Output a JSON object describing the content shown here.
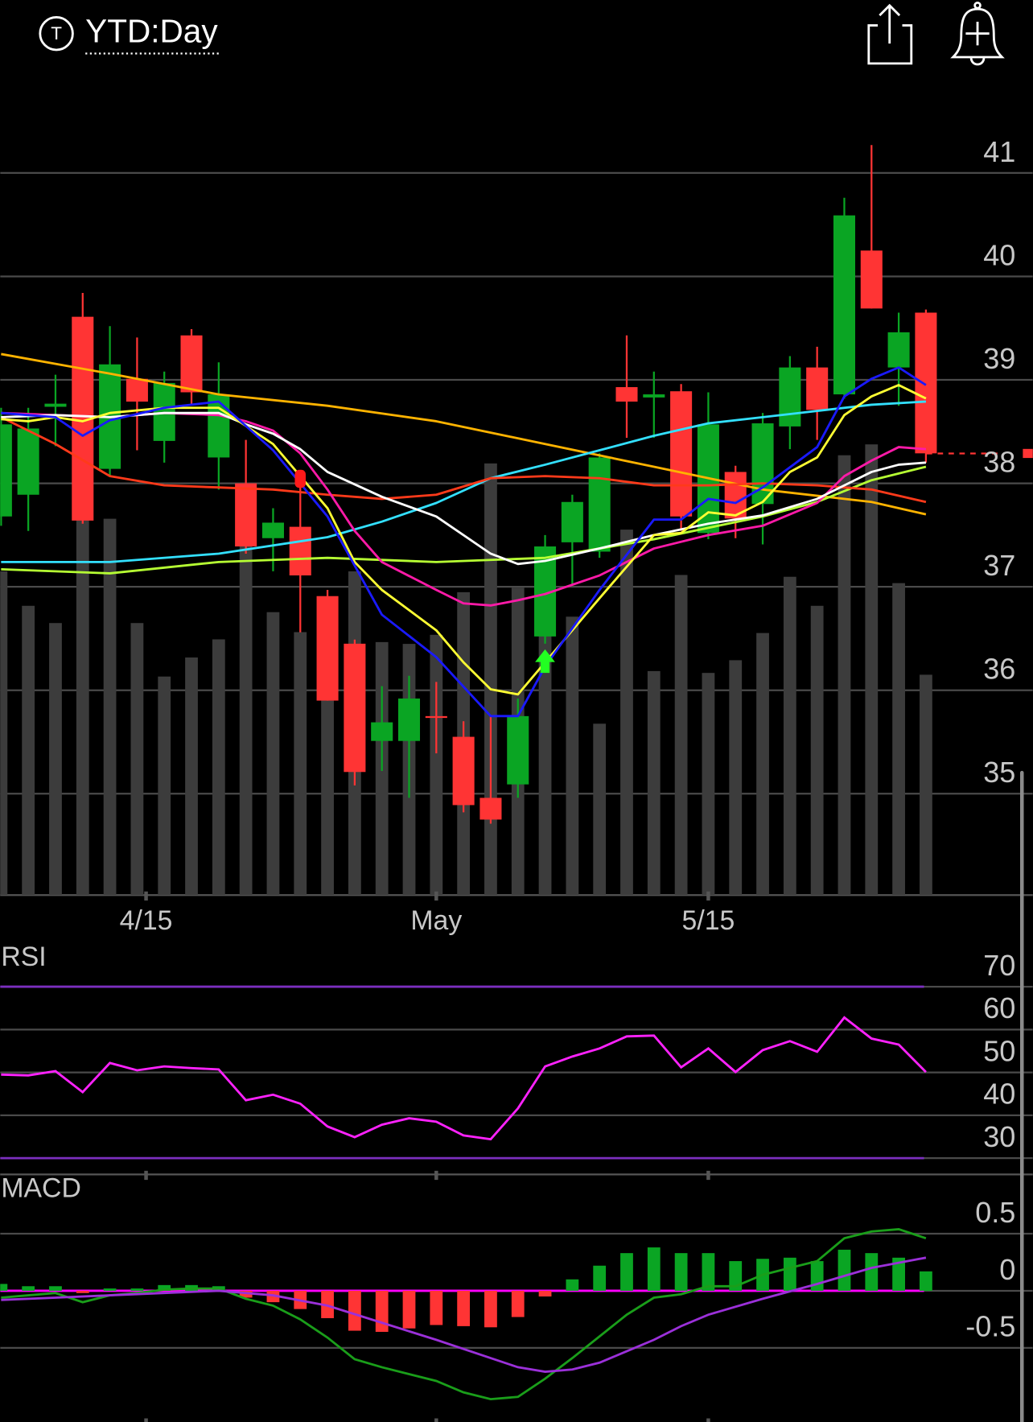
{
  "header": {
    "icon_letter": "T",
    "title": "YTD:Day"
  },
  "chart_data": [
    {
      "type": "candlestick",
      "x": [
        0,
        1,
        2,
        3,
        4,
        5,
        6,
        7,
        8,
        9,
        10,
        11,
        12,
        13,
        14,
        15,
        16,
        17,
        18,
        19,
        20,
        21,
        22,
        23,
        24,
        25,
        26,
        27,
        28,
        29,
        30,
        31,
        32,
        33,
        34
      ],
      "open": [
        37.68,
        37.89,
        38.74,
        39.61,
        38.14,
        39.01,
        38.41,
        39.43,
        38.25,
        38.0,
        37.47,
        37.58,
        36.91,
        36.45,
        35.51,
        35.51,
        35.75,
        35.55,
        34.96,
        35.09,
        36.52,
        37.43,
        37.34,
        38.93,
        38.83,
        38.89,
        37.52,
        38.11,
        37.8,
        38.55,
        39.12,
        38.86,
        40.25,
        39.12,
        39.65
      ],
      "high": [
        38.73,
        38.73,
        39.05,
        39.84,
        39.52,
        39.41,
        39.08,
        39.49,
        39.17,
        38.42,
        37.76,
        38.11,
        36.97,
        36.49,
        36.04,
        36.14,
        36.08,
        35.7,
        35.75,
        35.92,
        37.5,
        37.89,
        38.29,
        39.43,
        39.08,
        38.96,
        38.88,
        38.17,
        38.68,
        39.23,
        39.32,
        40.76,
        41.27,
        39.65,
        39.68
      ],
      "low": [
        37.59,
        37.54,
        38.36,
        37.61,
        38.07,
        38.32,
        38.2,
        38.77,
        37.94,
        37.32,
        37.15,
        36.56,
        35.9,
        35.08,
        35.22,
        34.96,
        35.39,
        34.82,
        34.71,
        34.96,
        36.45,
        37.02,
        37.28,
        38.44,
        38.44,
        37.54,
        37.46,
        37.47,
        37.41,
        38.33,
        38.42,
        38.82,
        39.69,
        38.75,
        38.2
      ],
      "close": [
        38.57,
        38.53,
        38.77,
        37.64,
        39.15,
        38.79,
        38.97,
        38.88,
        38.86,
        37.39,
        37.62,
        37.11,
        35.9,
        35.21,
        35.69,
        35.92,
        35.74,
        34.89,
        34.75,
        35.75,
        37.39,
        37.82,
        38.25,
        38.79,
        38.86,
        37.68,
        38.57,
        37.66,
        38.58,
        39.12,
        38.71,
        40.59,
        39.69,
        39.46,
        38.29
      ],
      "up_color": "#0aa523",
      "down_color": "#ff3434",
      "volume": [
        357,
        319,
        300,
        427,
        415,
        300,
        241,
        262,
        282,
        387,
        312,
        290,
        307,
        357,
        279,
        277,
        287,
        334,
        476,
        339,
        287,
        307,
        189,
        403,
        247,
        353,
        245,
        259,
        289,
        351,
        319,
        485,
        497,
        344,
        243
      ],
      "volume_color": "#3c3c3c",
      "volume_lim": [
        0,
        867
      ],
      "lines": [
        {
          "color": "#ffb300",
          "x": [
            0,
            4,
            8,
            12,
            16,
            20,
            24,
            28,
            32,
            34
          ],
          "values": [
            39.25,
            39.06,
            38.86,
            38.75,
            38.6,
            38.38,
            38.16,
            37.94,
            37.82,
            37.7
          ]
        },
        {
          "color": "#33e0ff",
          "x": [
            0,
            4,
            8,
            12,
            14,
            16,
            18,
            20,
            22,
            24,
            26,
            28,
            30,
            32,
            34
          ],
          "values": [
            37.24,
            37.24,
            37.32,
            37.48,
            37.63,
            37.81,
            38.05,
            38.18,
            38.32,
            38.46,
            38.58,
            38.64,
            38.7,
            38.76,
            38.79
          ]
        },
        {
          "color": "#b6ff33",
          "x": [
            0,
            4,
            8,
            12,
            16,
            20,
            22,
            24,
            26,
            28,
            30,
            32,
            34
          ],
          "values": [
            37.17,
            37.13,
            37.24,
            37.28,
            37.24,
            37.28,
            37.37,
            37.46,
            37.57,
            37.68,
            37.82,
            38.03,
            38.16
          ]
        },
        {
          "color": "#ff3a1a",
          "x": [
            0,
            2,
            4,
            6,
            8,
            10,
            12,
            14,
            16,
            18,
            20,
            22,
            24,
            26,
            28,
            30,
            32,
            34
          ],
          "values": [
            38.64,
            38.38,
            38.07,
            37.98,
            37.96,
            37.94,
            37.89,
            37.85,
            37.89,
            38.05,
            38.07,
            38.05,
            37.98,
            37.98,
            38.0,
            37.98,
            37.94,
            37.82
          ]
        },
        {
          "color": "#ff1aa8",
          "x": [
            0,
            2,
            4,
            6,
            8,
            9,
            10,
            11,
            12,
            13,
            14,
            16,
            17,
            18,
            19,
            20,
            22,
            24,
            26,
            28,
            30,
            31,
            32,
            33,
            34
          ],
          "values": [
            38.68,
            38.66,
            38.64,
            38.68,
            38.66,
            38.6,
            38.51,
            38.29,
            37.94,
            37.54,
            37.24,
            36.97,
            36.84,
            36.82,
            36.87,
            36.93,
            37.11,
            37.37,
            37.5,
            37.59,
            37.81,
            38.07,
            38.22,
            38.35,
            38.33
          ]
        },
        {
          "color": "#ffffff",
          "x": [
            0,
            2,
            4,
            6,
            8,
            9,
            10,
            11,
            12,
            14,
            16,
            18,
            19,
            20,
            22,
            24,
            26,
            28,
            30,
            31,
            32,
            33,
            34
          ],
          "values": [
            38.64,
            38.66,
            38.64,
            38.68,
            38.68,
            38.57,
            38.48,
            38.33,
            38.11,
            37.87,
            37.68,
            37.32,
            37.22,
            37.25,
            37.37,
            37.5,
            37.61,
            37.69,
            37.85,
            37.98,
            38.11,
            38.18,
            38.2
          ]
        },
        {
          "color": "#ffff33",
          "x": [
            0,
            1,
            2,
            3,
            4,
            6,
            8,
            10,
            11,
            12,
            13,
            14,
            16,
            17,
            18,
            19,
            20,
            22,
            24,
            25,
            26,
            27,
            28,
            29,
            30,
            31,
            32,
            33,
            34
          ],
          "values": [
            38.62,
            38.6,
            38.64,
            38.6,
            38.68,
            38.73,
            38.73,
            38.38,
            38.07,
            37.76,
            37.24,
            36.97,
            36.58,
            36.27,
            36.01,
            35.96,
            36.27,
            36.89,
            37.5,
            37.52,
            37.72,
            37.69,
            37.82,
            38.11,
            38.25,
            38.66,
            38.84,
            38.95,
            38.82
          ]
        },
        {
          "color": "#1a1aff",
          "x": [
            0,
            1,
            2,
            3,
            4,
            6,
            8,
            10,
            12,
            14,
            16,
            18,
            19,
            20,
            22,
            24,
            25,
            26,
            27,
            28,
            30,
            31,
            32,
            33,
            34
          ],
          "values": [
            38.68,
            38.66,
            38.64,
            38.46,
            38.61,
            38.73,
            38.79,
            38.32,
            37.68,
            36.73,
            36.32,
            35.75,
            35.75,
            36.23,
            36.97,
            37.65,
            37.65,
            37.85,
            37.81,
            37.96,
            38.35,
            38.84,
            39.01,
            39.12,
            38.95
          ]
        }
      ],
      "xlim": [
        0,
        37.93
      ],
      "ylim": [
        34.02,
        41.62
      ],
      "yticks": [
        35,
        36,
        37,
        38,
        39,
        40,
        41
      ],
      "xticks": [
        {
          "value": 5.33,
          "label": "4/15"
        },
        {
          "value": 16,
          "label": "May"
        },
        {
          "value": 26,
          "label": "5/15"
        }
      ],
      "grid": true
    },
    {
      "type": "line",
      "title": "RSI",
      "x": [
        0,
        1,
        2,
        3,
        4,
        5,
        6,
        7,
        8,
        9,
        10,
        11,
        12,
        13,
        14,
        15,
        16,
        17,
        18,
        19,
        20,
        21,
        22,
        23,
        24,
        25,
        26,
        27,
        28,
        29,
        30,
        31,
        32,
        33,
        34
      ],
      "series": [
        {
          "color": "#ff22ff",
          "values": [
            49.5,
            49.3,
            50.3,
            45.4,
            52.2,
            50.5,
            51.4,
            51.0,
            50.7,
            43.5,
            44.8,
            42.7,
            37.4,
            34.9,
            37.8,
            39.3,
            38.5,
            35.3,
            34.4,
            41.6,
            51.4,
            53.7,
            55.6,
            58.4,
            58.6,
            51.2,
            55.6,
            50.1,
            55.2,
            57.3,
            54.8,
            62.8,
            57.9,
            56.5,
            50.1
          ]
        }
      ],
      "hlines": [
        70,
        30
      ],
      "hline_color": "#7b2fbf",
      "xlim": [
        0,
        37.93
      ],
      "ylim": [
        26.2,
        79.1
      ],
      "yticks": [
        30,
        40,
        50,
        60,
        70
      ],
      "grid": true
    },
    {
      "type": "macd",
      "title": "MACD",
      "x": [
        0,
        1,
        2,
        3,
        4,
        5,
        6,
        7,
        8,
        9,
        10,
        11,
        12,
        13,
        14,
        15,
        16,
        17,
        18,
        19,
        20,
        21,
        22,
        23,
        24,
        25,
        26,
        27,
        28,
        29,
        30,
        31,
        32,
        33,
        34
      ],
      "histogram": [
        0.06,
        0.04,
        0.04,
        -0.02,
        0.02,
        0.02,
        0.05,
        0.05,
        0.04,
        -0.06,
        -0.1,
        -0.16,
        -0.24,
        -0.35,
        -0.36,
        -0.33,
        -0.3,
        -0.31,
        -0.32,
        -0.23,
        -0.05,
        0.1,
        0.22,
        0.33,
        0.38,
        0.33,
        0.33,
        0.26,
        0.28,
        0.29,
        0.26,
        0.36,
        0.33,
        0.29,
        0.17
      ],
      "up_color": "#0aa523",
      "down_color": "#ff3434",
      "series": [
        {
          "color": "#1a9e1a",
          "x": [
            0,
            1,
            2,
            3,
            4,
            5,
            6,
            7,
            8,
            9,
            10,
            11,
            12,
            13,
            14,
            15,
            16,
            17,
            18,
            19,
            20,
            21,
            22,
            23,
            24,
            25,
            26,
            27,
            28,
            29,
            30,
            31,
            32,
            33,
            34
          ],
          "values": [
            -0.06,
            -0.04,
            -0.02,
            -0.1,
            -0.04,
            -0.02,
            0.01,
            0.02,
            0.02,
            -0.07,
            -0.13,
            -0.25,
            -0.41,
            -0.6,
            -0.67,
            -0.73,
            -0.79,
            -0.89,
            -0.95,
            -0.93,
            -0.77,
            -0.59,
            -0.4,
            -0.21,
            -0.06,
            -0.03,
            0.04,
            0.04,
            0.14,
            0.2,
            0.26,
            0.46,
            0.52,
            0.54,
            0.46
          ]
        },
        {
          "color": "#9b30d9",
          "x": [
            0,
            2,
            4,
            6,
            8,
            10,
            12,
            14,
            16,
            18,
            19,
            20,
            21,
            22,
            23,
            24,
            25,
            26,
            28,
            30,
            32,
            34
          ],
          "values": [
            -0.08,
            -0.06,
            -0.04,
            -0.02,
            0,
            -0.04,
            -0.13,
            -0.28,
            -0.43,
            -0.59,
            -0.67,
            -0.71,
            -0.69,
            -0.63,
            -0.53,
            -0.43,
            -0.31,
            -0.21,
            -0.07,
            0.06,
            0.2,
            0.29
          ]
        }
      ],
      "hlines": [
        0
      ],
      "hline_color": "#ff00ff",
      "xlim": [
        0,
        37.93
      ],
      "ylim": [
        -1.15,
        0.98
      ],
      "yticks": [
        -0.5,
        0,
        0.5
      ],
      "grid": true
    }
  ]
}
